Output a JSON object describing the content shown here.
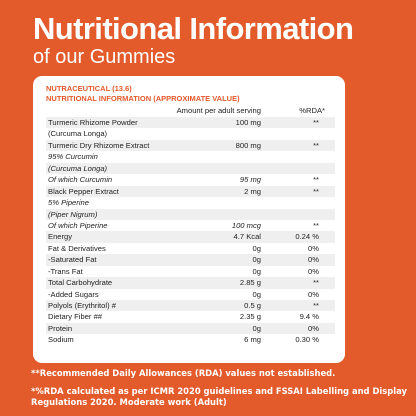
{
  "header": {
    "title": "Nutritional Information",
    "subtitle": "of our Gummies"
  },
  "card": {
    "brand_line1": "NUTRACEUTICAL (13.6)",
    "brand_line2": "NUTRITIONAL INFORMATION (APPROXIMATE VALUE)",
    "col_amount": "Amount per adult serving",
    "col_rda": "%RDA*"
  },
  "rows": [
    {
      "label": "Turmeric Rhizome Powder",
      "amount": "100 mg",
      "rda": "**"
    },
    {
      "label": "(Curcuma Longa)",
      "amount": "",
      "rda": ""
    },
    {
      "label": "Turmeric Dry Rhizome Extract",
      "amount": "800 mg",
      "rda": "**"
    },
    {
      "label": "95% Curcumin",
      "amount": "",
      "rda": ""
    },
    {
      "label": "(Curcuma Longa)",
      "amount": "",
      "rda": ""
    },
    {
      "label": "Of which Curcumin",
      "amount": "95 mg",
      "rda": "**"
    },
    {
      "label": "Black Pepper Extract",
      "amount": "2 mg",
      "rda": "**"
    },
    {
      "label": "5% Piperine",
      "amount": "",
      "rda": ""
    },
    {
      "label": "(Piper Nigrum)",
      "amount": "",
      "rda": ""
    },
    {
      "label": "Of which Piperine",
      "amount": "100 mcg",
      "rda": "**"
    },
    {
      "label": "Energy",
      "amount": "4.7 Kcal",
      "rda": "0.24 %"
    },
    {
      "label": "Fat & Derivatives",
      "amount": "0g",
      "rda": "0%"
    },
    {
      "label": "-Saturated Fat",
      "amount": "0g",
      "rda": "0%"
    },
    {
      "label": "-Trans Fat",
      "amount": "0g",
      "rda": "0%"
    },
    {
      "label": "Total Carbohydrate",
      "amount": "2.85 g",
      "rda": "**"
    },
    {
      "label": "-Added Sugars",
      "amount": "0g",
      "rda": "0%"
    },
    {
      "label": "Polyols (Erythritol) #",
      "amount": "0.5 g",
      "rda": "**"
    },
    {
      "label": "Dietary Fiber ##",
      "amount": "2.35 g",
      "rda": "9.4 %"
    },
    {
      "label": "Protein",
      "amount": "0g",
      "rda": "0%"
    },
    {
      "label": "Sodium",
      "amount": "6 mg",
      "rda": "0.30 %"
    }
  ],
  "notes": {
    "note1": "**Recommended Daily Allowances (RDA) values not established.",
    "note2": "*%RDA calculated as per ICMR 2020 guidelines and FSSAI Labelling and Display Regulations 2020. Moderate work (Adult)"
  },
  "colors": {
    "background": "#e35a2b",
    "card": "#ffffff",
    "accent_text": "#e35a2b",
    "row_shade": "#efefef"
  }
}
